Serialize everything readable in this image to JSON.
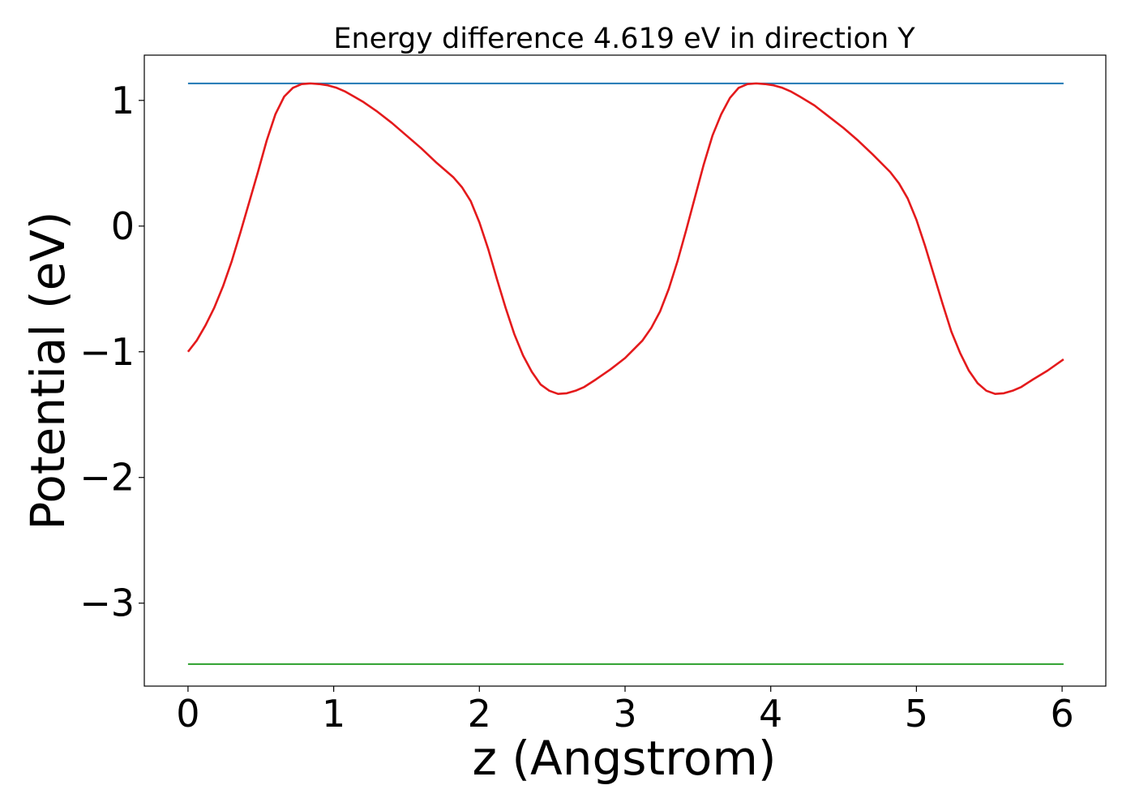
{
  "chart_data": {
    "type": "line",
    "title": "Energy difference 4.619 eV in direction Y",
    "xlabel": "z (Angstrom)",
    "ylabel": "Potential (eV)",
    "xlim": [
      -0.3,
      6.3
    ],
    "ylim": [
      -3.66,
      1.36
    ],
    "xticks": [
      0,
      1,
      2,
      3,
      4,
      5,
      6
    ],
    "xtick_labels": [
      "0",
      "1",
      "2",
      "3",
      "4",
      "5",
      "6"
    ],
    "yticks": [
      1,
      0,
      -1,
      -2,
      -3
    ],
    "ytick_labels": [
      "1",
      "0",
      "−1",
      "−2",
      "−3"
    ],
    "grid": false,
    "series": [
      {
        "color": "#1f77b4",
        "x": [
          0,
          6.01
        ],
        "y": [
          1.135,
          1.135
        ]
      },
      {
        "color": "#2ca02c",
        "x": [
          0,
          6.01
        ],
        "y": [
          -3.485,
          -3.485
        ]
      },
      {
        "color": "#e41a1c",
        "x": [
          0,
          0.06,
          0.12,
          0.18,
          0.24,
          0.3,
          0.36,
          0.42,
          0.48,
          0.54,
          0.6,
          0.66,
          0.72,
          0.78,
          0.84,
          0.9,
          0.96,
          1.02,
          1.08,
          1.14,
          1.2,
          1.3,
          1.4,
          1.5,
          1.6,
          1.7,
          1.82,
          1.88,
          1.94,
          2.0,
          2.06,
          2.12,
          2.18,
          2.24,
          2.3,
          2.36,
          2.42,
          2.48,
          2.54,
          2.6,
          2.66,
          2.72,
          2.8,
          2.9,
          3.0,
          3.06,
          3.12,
          3.18,
          3.24,
          3.3,
          3.36,
          3.42,
          3.48,
          3.54,
          3.6,
          3.66,
          3.72,
          3.78,
          3.84,
          3.9,
          3.96,
          4.02,
          4.08,
          4.14,
          4.2,
          4.3,
          4.4,
          4.5,
          4.6,
          4.7,
          4.82,
          4.88,
          4.94,
          5.0,
          5.06,
          5.12,
          5.18,
          5.24,
          5.3,
          5.36,
          5.42,
          5.48,
          5.54,
          5.6,
          5.66,
          5.72,
          5.8,
          5.9,
          6.01
        ],
        "y": [
          -1.0,
          -0.91,
          -0.79,
          -0.65,
          -0.48,
          -0.28,
          -0.05,
          0.19,
          0.43,
          0.68,
          0.89,
          1.03,
          1.1,
          1.13,
          1.135,
          1.13,
          1.12,
          1.1,
          1.07,
          1.03,
          0.99,
          0.91,
          0.82,
          0.72,
          0.62,
          0.51,
          0.39,
          0.31,
          0.2,
          0.03,
          -0.18,
          -0.42,
          -0.65,
          -0.86,
          -1.03,
          -1.16,
          -1.26,
          -1.31,
          -1.335,
          -1.33,
          -1.31,
          -1.28,
          -1.22,
          -1.14,
          -1.05,
          -0.98,
          -0.91,
          -0.81,
          -0.68,
          -0.5,
          -0.28,
          -0.03,
          0.23,
          0.49,
          0.72,
          0.89,
          1.02,
          1.1,
          1.13,
          1.135,
          1.13,
          1.12,
          1.1,
          1.07,
          1.03,
          0.96,
          0.87,
          0.78,
          0.68,
          0.57,
          0.43,
          0.34,
          0.22,
          0.05,
          -0.16,
          -0.39,
          -0.62,
          -0.84,
          -1.01,
          -1.15,
          -1.25,
          -1.31,
          -1.335,
          -1.33,
          -1.31,
          -1.28,
          -1.22,
          -1.15,
          -1.06
        ]
      }
    ]
  }
}
